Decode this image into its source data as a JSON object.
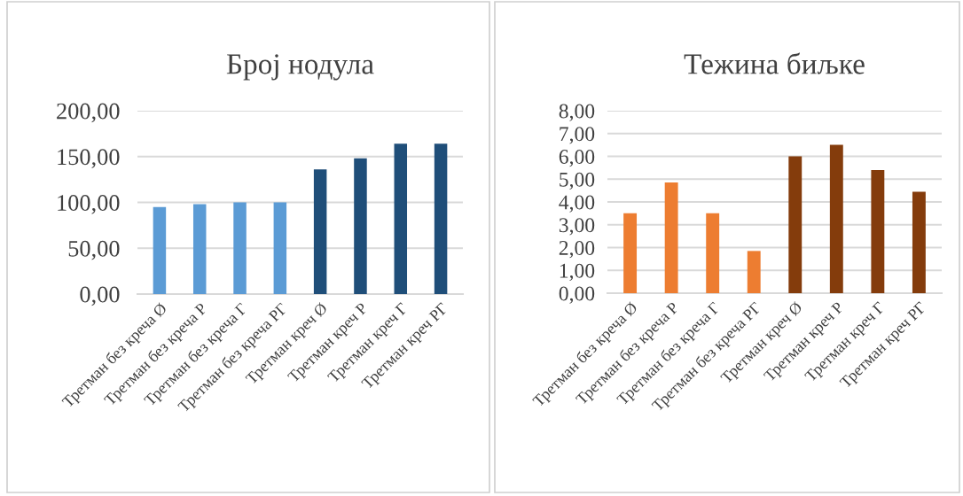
{
  "chart_data": [
    {
      "type": "bar",
      "title": "Број нодула",
      "categories": [
        "Третман без креча Ø",
        "Третман без креча Р",
        "Третман без креча Г",
        "Третман без креча РГ",
        "Третман креч Ø",
        "Третман креч Р",
        "Третман креч Г",
        "Третман креч РГ"
      ],
      "values": [
        95,
        98,
        100,
        100,
        136,
        148,
        164,
        164
      ],
      "colors": [
        "#5b9bd5",
        "#5b9bd5",
        "#5b9bd5",
        "#5b9bd5",
        "#1f4e79",
        "#1f4e79",
        "#1f4e79",
        "#1f4e79"
      ],
      "ylim": [
        0,
        200
      ],
      "yticks": [
        {
          "value": 0,
          "label": "0,00"
        },
        {
          "value": 50,
          "label": "50,00"
        },
        {
          "value": 100,
          "label": "100,00"
        },
        {
          "value": 150,
          "label": "150,00"
        },
        {
          "value": 200,
          "label": "200,00"
        }
      ],
      "grid": "y"
    },
    {
      "type": "bar",
      "title": "Тежина биљке",
      "categories": [
        "Третман без креча Ø",
        "Третман без креча Р",
        "Третман без креча Г",
        "Третман без креча РГ",
        "Третман креч Ø",
        "Третман креч Р",
        "Третман креч Г",
        "Третман креч РГ"
      ],
      "values": [
        3.5,
        4.85,
        3.5,
        1.85,
        6.0,
        6.5,
        5.4,
        4.45
      ],
      "colors": [
        "#ed7d31",
        "#ed7d31",
        "#ed7d31",
        "#ed7d31",
        "#843c0c",
        "#843c0c",
        "#843c0c",
        "#843c0c"
      ],
      "ylim": [
        0,
        8
      ],
      "yticks": [
        {
          "value": 0,
          "label": "0,00"
        },
        {
          "value": 1,
          "label": "1,00"
        },
        {
          "value": 2,
          "label": "2,00"
        },
        {
          "value": 3,
          "label": "3,00"
        },
        {
          "value": 4,
          "label": "4,00"
        },
        {
          "value": 5,
          "label": "5,00"
        },
        {
          "value": 6,
          "label": "6,00"
        },
        {
          "value": 7,
          "label": "7,00"
        },
        {
          "value": 8,
          "label": "8,00"
        }
      ],
      "grid": "y"
    }
  ]
}
